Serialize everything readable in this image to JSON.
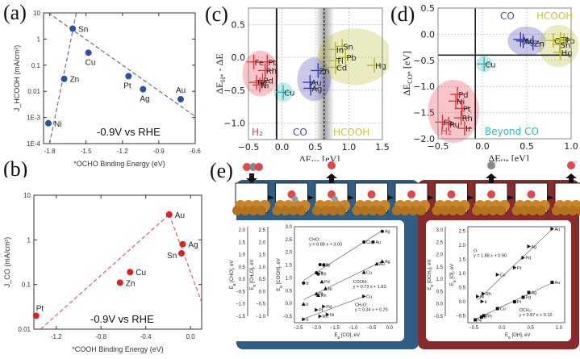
{
  "chart_data": [
    {
      "id": "a",
      "panel_label": "(a)",
      "type": "scatter",
      "xlabel": "*OCHO Binding Energy (eV)",
      "ylabel": "J_HCOOH (mA/cm²)",
      "xlim": [
        -1.85,
        -0.6
      ],
      "ylim_log10": [
        -4,
        1
      ],
      "yscale": "log",
      "xticks": [
        -1.8,
        -1.5,
        -1.2,
        -0.9,
        -0.6
      ],
      "xtick_labels": [
        "-1.8",
        "-1.5",
        "-1.2",
        "-0.9",
        "-0.6"
      ],
      "yticks": [
        0.0001,
        0.001,
        0.01,
        0.1,
        1,
        10
      ],
      "ytick_labels": [
        "1E-4",
        "1E-3",
        "0.01",
        "0.1",
        "1",
        "10"
      ],
      "annotation": "-0.9V vs RHE",
      "marker_color": "#2f4fa0",
      "line_color": "#5a6fa8",
      "points": [
        {
          "label": "Ni",
          "x": -1.81,
          "y": 0.0006
        },
        {
          "label": "Zn",
          "x": -1.68,
          "y": 0.03
        },
        {
          "label": "Sn",
          "x": -1.61,
          "y": 2.5
        },
        {
          "label": "Cu",
          "x": -1.48,
          "y": 0.3
        },
        {
          "label": "Pt",
          "x": -1.15,
          "y": 0.038
        },
        {
          "label": "Ag",
          "x": -1.03,
          "y": 0.012
        },
        {
          "label": "Au",
          "x": -0.72,
          "y": 0.005
        }
      ],
      "trend_lines": [
        {
          "x": [
            -1.8,
            -1.58
          ],
          "y": [
            0.0001,
            10
          ]
        },
        {
          "x": [
            -1.81,
            -0.6
          ],
          "y": [
            10,
            0.0011
          ]
        }
      ]
    },
    {
      "id": "b",
      "panel_label": "(b)",
      "type": "scatter",
      "xlabel": "*COOH Binding Energy (eV)",
      "ylabel": "J_CO (mA/cm²)",
      "xlim": [
        -1.4,
        0.1
      ],
      "ylim_log10": [
        -2,
        1
      ],
      "yscale": "log",
      "xticks": [
        -1.2,
        -0.8,
        -0.4,
        0.0
      ],
      "xtick_labels": [
        "-1.2",
        "-0.8",
        "-0.4",
        "0.0"
      ],
      "yticks": [
        0.01,
        0.1,
        1,
        10
      ],
      "ytick_labels": [
        "0.01",
        "0.1",
        "1",
        "10"
      ],
      "annotation": "-0.9V vs RHE",
      "marker_color": "#e02020",
      "line_color": "#e06060",
      "points": [
        {
          "label": "Pt",
          "x": -1.38,
          "y": 0.02
        },
        {
          "label": "Zn",
          "x": -0.63,
          "y": 0.11
        },
        {
          "label": "Cu",
          "x": -0.54,
          "y": 0.19
        },
        {
          "label": "Au",
          "x": -0.19,
          "y": 3.7
        },
        {
          "label": "Ag",
          "x": -0.07,
          "y": 0.8
        },
        {
          "label": "Sn",
          "x": -0.08,
          "y": 0.5
        }
      ],
      "trend_lines": [
        {
          "x": [
            -1.34,
            -0.19
          ],
          "y": [
            0.01,
            3.7
          ]
        },
        {
          "x": [
            -0.19,
            0.1
          ],
          "y": [
            3.7,
            0.04
          ]
        }
      ]
    },
    {
      "id": "c",
      "panel_label": "(c)",
      "type": "scatter",
      "xlabel": "ΔE_H* [eV]",
      "ylabel": "ΔE_H* - ΔE_COOH* [eV]",
      "xlim": [
        -0.5,
        1.5
      ],
      "ylim": [
        -1.25,
        0.75
      ],
      "xticks": [
        -0.5,
        0.0,
        0.5,
        1.0,
        1.5
      ],
      "xtick_labels": [
        "−0.5",
        "0.0",
        "0.5",
        "1.0",
        "1.5"
      ],
      "yticks": [
        -1.0,
        -0.5,
        0.0,
        0.5
      ],
      "ytick_labels": [
        "−1.0",
        "−0.5",
        "0.0",
        "0.5"
      ],
      "vertical_lines": [
        {
          "x": -0.08,
          "style": "solid"
        },
        {
          "x": 0.63,
          "style": "dashed"
        }
      ],
      "region_labels": [
        {
          "text": "H₂",
          "color": "#e0404a"
        },
        {
          "text": "CO",
          "color": "#4a4aa8"
        },
        {
          "text": "HCOOH",
          "color": "#c8c832"
        }
      ],
      "groups": [
        {
          "name": "H2",
          "color": "#e8303a",
          "points": [
            {
              "label": "Fe",
              "x": -0.42,
              "y": -0.07
            },
            {
              "label": "Pt",
              "x": -0.22,
              "y": -0.07
            },
            {
              "label": "Rh",
              "x": -0.25,
              "y": -0.2
            },
            {
              "label": "Pd",
              "x": -0.29,
              "y": -0.35
            },
            {
              "label": "Re",
              "x": -0.38,
              "y": -0.38
            },
            {
              "label": "Ni",
              "x": -0.33,
              "y": -0.42
            }
          ]
        },
        {
          "name": "BeyondCO",
          "color": "#30b8b0",
          "points": [
            {
              "label": "Cu",
              "x": 0.02,
              "y": -0.53
            }
          ]
        },
        {
          "name": "CO",
          "color": "#3a3ab0",
          "points": [
            {
              "label": "Au",
              "x": 0.42,
              "y": -0.38
            },
            {
              "label": "Ag",
              "x": 0.43,
              "y": -0.47
            },
            {
              "label": "Zn",
              "x": 0.54,
              "y": -0.2
            }
          ]
        },
        {
          "name": "HCOOH",
          "color": "#b8b820",
          "points": [
            {
              "label": "Sn",
              "x": 0.9,
              "y": 0.17
            },
            {
              "label": "In",
              "x": 0.8,
              "y": 0.12
            },
            {
              "label": "Pb",
              "x": 0.95,
              "y": 0.0
            },
            {
              "label": "Tl",
              "x": 0.8,
              "y": -0.05
            },
            {
              "label": "Cd",
              "x": 0.8,
              "y": -0.15
            },
            {
              "label": "Hg",
              "x": 1.38,
              "y": -0.12
            }
          ]
        }
      ]
    },
    {
      "id": "d",
      "panel_label": "(d)",
      "type": "scatter",
      "xlabel": "ΔE_H* [eV]",
      "ylabel": "ΔE_CO* [eV]",
      "xlim": [
        -0.5,
        1.0
      ],
      "ylim": [
        -2.0,
        0.5
      ],
      "xticks": [
        -0.5,
        0.0,
        0.5,
        1.0
      ],
      "xtick_labels": [
        "−0.5",
        "0.0",
        "0.5",
        "1.0"
      ],
      "yticks": [
        -2.0,
        -1.5,
        -1.0,
        -0.5,
        0.0,
        0.5
      ],
      "ytick_labels": [
        "−2.0",
        "−1.5",
        "−1.0",
        "−0.5",
        "0.0",
        "0.5"
      ],
      "reference_lines": [
        {
          "orientation": "vertical",
          "value": -0.08
        },
        {
          "orientation": "horizontal",
          "value": -0.4
        }
      ],
      "region_labels": [
        {
          "text": "CO",
          "color": "#4a4aa8"
        },
        {
          "text": "HCOOH",
          "color": "#c8c832"
        },
        {
          "text": "H₂",
          "color": "#e0404a"
        },
        {
          "text": "Beyond CO",
          "color": "#30b8b0"
        }
      ],
      "groups": [
        {
          "name": "H2",
          "color": "#e8303a",
          "points": [
            {
              "label": "Pd",
              "x": -0.28,
              "y": -1.15
            },
            {
              "label": "Ni",
              "x": -0.3,
              "y": -1.28
            },
            {
              "label": "Pt",
              "x": -0.23,
              "y": -1.42
            },
            {
              "label": "Rh",
              "x": -0.24,
              "y": -1.6
            },
            {
              "label": "Fe",
              "x": -0.45,
              "y": -1.68
            },
            {
              "label": "Ru",
              "x": -0.38,
              "y": -1.72
            },
            {
              "label": "Ir",
              "x": -0.2,
              "y": -1.8
            }
          ]
        },
        {
          "name": "BeyondCO",
          "color": "#30b8b0",
          "points": [
            {
              "label": "Cu",
              "x": 0.02,
              "y": -0.57
            }
          ]
        },
        {
          "name": "CO",
          "color": "#3a3ab0",
          "points": [
            {
              "label": "Au",
              "x": 0.43,
              "y": -0.1
            },
            {
              "label": "Ag",
              "x": 0.46,
              "y": -0.13
            },
            {
              "label": "Zn",
              "x": 0.57,
              "y": -0.17
            }
          ]
        },
        {
          "name": "HCOOH",
          "color": "#b8b820",
          "points": [
            {
              "label": "Cd",
              "x": 0.8,
              "y": -0.12
            },
            {
              "label": "Tl",
              "x": 0.88,
              "y": -0.1
            },
            {
              "label": "Pb",
              "x": 0.92,
              "y": -0.12
            },
            {
              "label": "Sn",
              "x": 0.87,
              "y": -0.2
            },
            {
              "label": "Hg",
              "x": 0.88,
              "y": -0.35
            }
          ]
        }
      ]
    },
    {
      "id": "e-left",
      "panel_label": "(e)",
      "type": "scatter",
      "xlabel": "E_B [CO], eV",
      "ylabel": "E_B [COOH], eV",
      "extra_axes": [
        {
          "label": "E_B [CH₂O], eV",
          "ticks": [
            "2.5",
            "2.0",
            "1.5",
            "1.0",
            "0.5",
            "0.0",
            "−0.5",
            "−1.0"
          ]
        },
        {
          "label": "E_B [CHO], eV",
          "ticks": [
            "2.0",
            "1.5",
            "1.0",
            "0.5",
            "0.0",
            "−0.5",
            "−1.0",
            "−1.5"
          ]
        }
      ],
      "xlim": [
        -2.6,
        0.2
      ],
      "ylim": [
        -0.75,
        3.0
      ],
      "xticks": [
        -2.5,
        -2.0,
        -1.5,
        -1.0,
        -0.5,
        0.0
      ],
      "xtick_labels": [
        "−2.5",
        "−2.0",
        "−1.5",
        "−1.0",
        "−0.5",
        "0.0"
      ],
      "yticks": [
        -0.5,
        0.0,
        0.5,
        1.0,
        1.5,
        2.0,
        2.5,
        3.0
      ],
      "ytick_labels": [
        "−0.5",
        "0.0",
        "0.5",
        "1.0",
        "1.5",
        "2.0",
        "2.5",
        "3.0"
      ],
      "series": [
        {
          "name": "CHO",
          "equation": "y = 0.88 x + 3.03",
          "marker": "circle",
          "fit": {
            "x": [
              -2.35,
              -0.2
            ],
            "y": [
              0.9,
              2.85
            ]
          },
          "points": [
            {
              "label": "Ag",
              "x": -0.2,
              "y": 2.82
            },
            {
              "label": "Cu",
              "x": -0.7,
              "y": 2.4
            },
            {
              "label": "Au",
              "x": -0.45,
              "y": 2.4
            },
            {
              "label": "Pd",
              "x": -1.9,
              "y": 1.52
            },
            {
              "label": "Ni",
              "x": -1.8,
              "y": 1.5
            },
            {
              "label": "Pt",
              "x": -2.0,
              "y": 1.2
            },
            {
              "label": "Rh",
              "x": -1.95,
              "y": 1.15
            },
            {
              "label": "Ir",
              "x": -2.35,
              "y": 0.8
            }
          ]
        },
        {
          "name": "COOH",
          "equation": "y = 0.73 x + 1.83",
          "marker": "triangle",
          "fit": {
            "x": [
              -2.35,
              -0.2
            ],
            "y": [
              0.15,
              1.65
            ]
          },
          "points": [
            {
              "label": "Ag",
              "x": -0.2,
              "y": 1.65
            },
            {
              "label": "Au",
              "x": -0.35,
              "y": 1.55
            },
            {
              "label": "Cu",
              "x": -0.7,
              "y": 1.22
            },
            {
              "label": "Pd",
              "x": -1.85,
              "y": 0.85
            },
            {
              "label": "Ni",
              "x": -1.75,
              "y": 0.58
            },
            {
              "label": "Pt",
              "x": -2.0,
              "y": 0.38
            },
            {
              "label": "Rh",
              "x": -1.95,
              "y": 0.32
            },
            {
              "label": "Ir",
              "x": -2.35,
              "y": -0.02
            }
          ]
        },
        {
          "name": "CH₂O",
          "equation": "y = 0.34 x + 0.25",
          "marker": "triangle-right",
          "fit": {
            "x": [
              -2.35,
              -0.7
            ],
            "y": [
              -0.6,
              0.28
            ]
          },
          "points": [
            {
              "label": "Cu",
              "x": -0.7,
              "y": 0.28
            },
            {
              "label": "Pd",
              "x": -1.8,
              "y": -0.12
            },
            {
              "label": "Pt",
              "x": -2.0,
              "y": -0.25
            },
            {
              "label": "Ni",
              "x": -1.7,
              "y": -0.43
            },
            {
              "label": "Rh",
              "x": -1.9,
              "y": -0.5
            },
            {
              "label": "Ir",
              "x": -2.35,
              "y": -0.62
            }
          ]
        }
      ]
    },
    {
      "id": "e-right",
      "type": "scatter",
      "xlabel": "E_B [OH], eV",
      "ylabel": "E_B [O], eV",
      "extra_axes": [
        {
          "label": "E_B [OCH₃], eV",
          "ticks": [
            "3.0",
            "2.5",
            "2.0",
            "1.5",
            "1.0",
            "0.5",
            "0.0",
            "−0.5"
          ]
        }
      ],
      "xlim": [
        -0.6,
        1.1
      ],
      "ylim": [
        -0.75,
        2.65
      ],
      "xticks": [
        -0.5,
        0.0,
        0.5,
        1.0
      ],
      "xtick_labels": [
        "−0.5",
        "0.0",
        "0.5",
        "1.0"
      ],
      "yticks": [
        -0.5,
        0.0,
        0.5,
        1.0,
        1.5,
        2.0,
        2.5
      ],
      "ytick_labels": [
        "−0.5",
        "0.0",
        "0.5",
        "1.0",
        "1.5",
        "2.0",
        "2.5"
      ],
      "series": [
        {
          "name": "O",
          "equation": "y = 1.88 x + 0.90",
          "marker": "triangle-right",
          "fit": {
            "x": [
              -0.43,
              0.9
            ],
            "y": [
              0.05,
              2.6
            ]
          },
          "points": [
            {
              "label": "Au",
              "x": 0.88,
              "y": 2.57
            },
            {
              "label": "Ag",
              "x": 0.47,
              "y": 1.95
            },
            {
              "label": "Pd",
              "x": 0.37,
              "y": 1.55
            },
            {
              "label": "Pt",
              "x": 0.22,
              "y": 1.2
            },
            {
              "label": "Cu",
              "x": -0.08,
              "y": 0.95
            },
            {
              "label": "Rh",
              "x": -0.33,
              "y": 0.28
            },
            {
              "label": "Ni",
              "x": -0.43,
              "y": 0.18
            },
            {
              "label": "Ir",
              "x": -0.35,
              "y": 0.0
            }
          ]
        },
        {
          "name": "OCH₃",
          "equation": "y = 0.87 x + 0.10",
          "marker": "square",
          "fit": {
            "x": [
              -0.5,
              0.9
            ],
            "y": [
              -0.66,
              0.68
            ]
          },
          "points": [
            {
              "label": "Au",
              "x": 0.88,
              "y": 0.68
            },
            {
              "label": "Ag",
              "x": 0.47,
              "y": 0.32
            },
            {
              "label": "Pd",
              "x": 0.37,
              "y": 0.15
            },
            {
              "label": "Pt",
              "x": 0.22,
              "y": -0.01
            },
            {
              "label": "Cu",
              "x": -0.08,
              "y": -0.25
            },
            {
              "label": "Rh",
              "x": -0.32,
              "y": -0.5
            },
            {
              "label": "Ir",
              "x": -0.36,
              "y": -0.55
            },
            {
              "label": "Ni",
              "x": -0.47,
              "y": -0.65
            }
          ]
        }
      ]
    }
  ],
  "reaction_pathway": {
    "panel_label": "(e)",
    "steps": 9,
    "arrows": [
      "in",
      "",
      "out",
      "",
      "",
      "",
      "out",
      "",
      "out"
    ],
    "co2_group_color": "#2e5d86",
    "o_group_color": "#8a2a2a"
  }
}
